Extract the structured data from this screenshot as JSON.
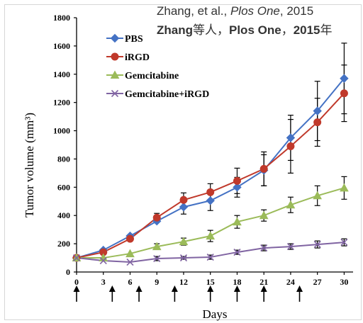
{
  "citation": {
    "line1_prefix": "Zhang, et al., ",
    "line1_journal": "Plos One",
    "line1_suffix": ", 2015",
    "line2_author": "Zhang",
    "line2_cn": "等人，",
    "line2_journal": "Plos One",
    "line2_sep": "，",
    "line2_year": "2015",
    "line2_end": "年"
  },
  "chart_data": {
    "type": "line",
    "title": "",
    "xlabel": "Days",
    "ylabel": "Tumor volume (mm³)",
    "x": [
      0,
      3,
      6,
      9,
      12,
      15,
      18,
      21,
      24,
      27,
      30
    ],
    "xticks": [
      "0",
      "3",
      "6",
      "9",
      "12",
      "15",
      "18",
      "21",
      "24",
      "27",
      "30"
    ],
    "xlim": [
      0,
      31
    ],
    "ylim": [
      0,
      1800
    ],
    "yticks": [
      "0",
      "200",
      "400",
      "600",
      "800",
      "1000",
      "1200",
      "1400",
      "1600",
      "1800"
    ],
    "grid": false,
    "legend_position": "top-left",
    "series": [
      {
        "name": "PBS",
        "color": "#4472c4",
        "marker": "diamond",
        "values": [
          100,
          155,
          255,
          360,
          460,
          505,
          600,
          720,
          950,
          1140,
          1370
        ],
        "errors": [
          0,
          0,
          0,
          0,
          50,
          70,
          70,
          110,
          160,
          210,
          250
        ]
      },
      {
        "name": "iRGD",
        "color": "#c0392b",
        "marker": "circle",
        "values": [
          100,
          140,
          235,
          385,
          510,
          565,
          645,
          730,
          890,
          1060,
          1265
        ],
        "errors": [
          0,
          0,
          0,
          30,
          50,
          60,
          90,
          120,
          190,
          170,
          200
        ]
      },
      {
        "name": "Gemcitabine",
        "color": "#9bbb59",
        "marker": "triangle",
        "values": [
          100,
          100,
          130,
          180,
          215,
          255,
          355,
          400,
          475,
          540,
          595
        ],
        "errors": [
          0,
          0,
          0,
          20,
          25,
          40,
          45,
          40,
          55,
          70,
          80
        ]
      },
      {
        "name": "Gemcitabine+iRGD",
        "color": "#8064a2",
        "marker": "x",
        "values": [
          100,
          80,
          70,
          95,
          100,
          105,
          140,
          170,
          180,
          195,
          210
        ],
        "errors": [
          0,
          0,
          0,
          15,
          10,
          15,
          15,
          20,
          20,
          25,
          25
        ]
      }
    ],
    "dose_arrows_x": [
      0,
      4,
      7,
      11,
      15,
      18,
      21,
      25
    ]
  }
}
